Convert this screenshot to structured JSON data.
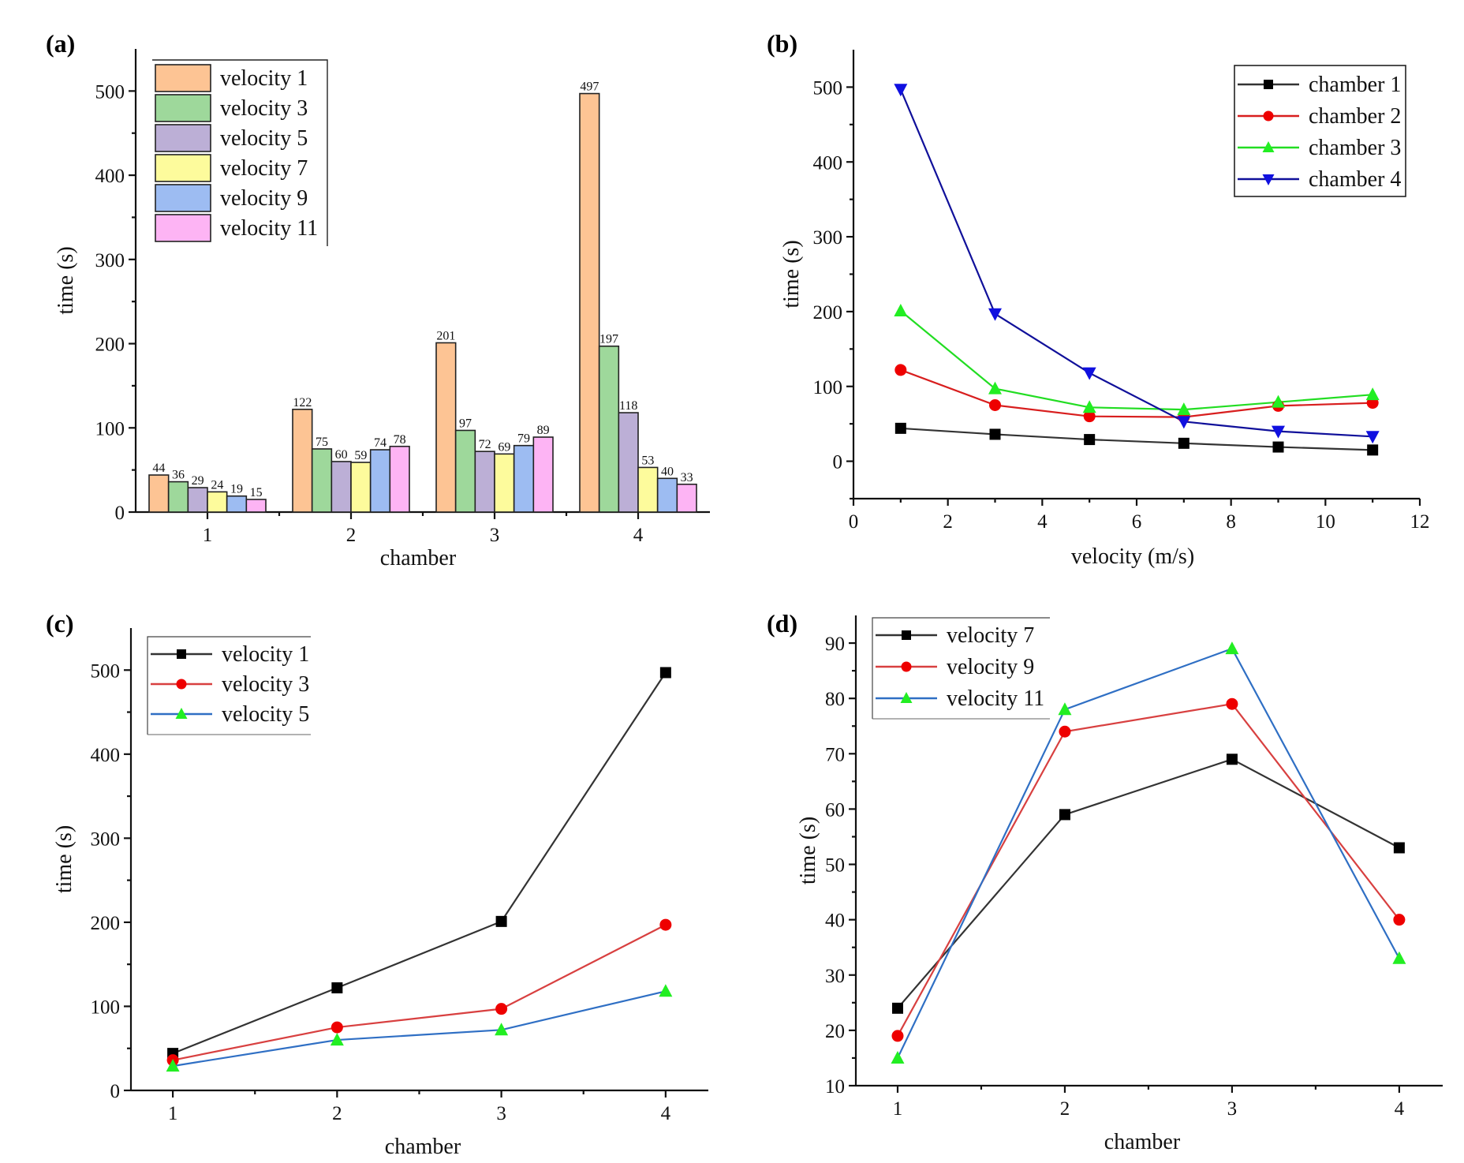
{
  "chart_data": [
    {
      "id": "a",
      "panel_label": "(a)",
      "type": "bar",
      "title": "",
      "xlabel": "chamber",
      "ylabel": "time (s)",
      "categories": [
        "1",
        "2",
        "3",
        "4"
      ],
      "xlim": [
        0.5,
        4.5
      ],
      "ylim": [
        0,
        550
      ],
      "yticks": [
        0,
        100,
        200,
        300,
        400,
        500
      ],
      "grid": false,
      "legend_position": "top-left",
      "data_labels": true,
      "series": [
        {
          "name": "velocity 1",
          "color": "#fdc494",
          "values": [
            44,
            122,
            201,
            497
          ]
        },
        {
          "name": "velocity 3",
          "color": "#9ed89b",
          "values": [
            36,
            75,
            97,
            197
          ]
        },
        {
          "name": "velocity 5",
          "color": "#bcafd6",
          "values": [
            29,
            60,
            72,
            118
          ]
        },
        {
          "name": "velocity 7",
          "color": "#fdfb9c",
          "values": [
            24,
            59,
            69,
            53
          ]
        },
        {
          "name": "velocity 9",
          "color": "#9dbcf2",
          "values": [
            19,
            74,
            79,
            40
          ]
        },
        {
          "name": "velocity 11",
          "color": "#fdb4f4",
          "values": [
            15,
            78,
            89,
            33
          ]
        }
      ]
    },
    {
      "id": "b",
      "panel_label": "(b)",
      "type": "line",
      "title": "",
      "xlabel": "velocity (m/s)",
      "ylabel": "time (s)",
      "x": [
        1,
        3,
        5,
        7,
        9,
        11
      ],
      "xlim": [
        0,
        12
      ],
      "ylim": [
        -50,
        550
      ],
      "xticks": [
        0,
        2,
        4,
        6,
        8,
        10,
        12
      ],
      "yticks": [
        0,
        100,
        200,
        300,
        400,
        500
      ],
      "grid": false,
      "legend_position": "top-right",
      "series": [
        {
          "name": "chamber 1",
          "color": "#333333",
          "marker": "square",
          "marker_color": "#000000",
          "values": [
            44,
            36,
            29,
            24,
            19,
            15
          ]
        },
        {
          "name": "chamber 2",
          "color": "#d81e1e",
          "marker": "circle",
          "marker_color": "#ee0000",
          "values": [
            122,
            75,
            60,
            59,
            74,
            78
          ]
        },
        {
          "name": "chamber 3",
          "color": "#22dd22",
          "marker": "triangle-up",
          "marker_color": "#22ee22",
          "values": [
            201,
            97,
            72,
            69,
            79,
            89
          ]
        },
        {
          "name": "chamber 4",
          "color": "#10109a",
          "marker": "triangle-down",
          "marker_color": "#1010e0",
          "values": [
            497,
            197,
            118,
            53,
            40,
            33
          ]
        }
      ]
    },
    {
      "id": "c",
      "panel_label": "(c)",
      "type": "line",
      "title": "",
      "xlabel": "chamber",
      "ylabel": "time (s)",
      "x": [
        1,
        2,
        3,
        4
      ],
      "xlim": [
        0.745,
        4.26
      ],
      "ylim": [
        0,
        550
      ],
      "xticks": [
        1,
        2,
        3,
        4
      ],
      "yticks": [
        0,
        100,
        200,
        300,
        400,
        500
      ],
      "grid": false,
      "legend_position": "top-left",
      "series": [
        {
          "name": "velocity 1",
          "color": "#333333",
          "marker": "square",
          "marker_color": "#000000",
          "values": [
            44,
            122,
            201,
            497
          ]
        },
        {
          "name": "velocity 3",
          "color": "#d84040",
          "marker": "circle",
          "marker_color": "#ee0000",
          "values": [
            36,
            75,
            97,
            197
          ]
        },
        {
          "name": "velocity 5",
          "color": "#2f6fc4",
          "marker": "triangle-up",
          "marker_color": "#22ee22",
          "values": [
            29,
            60,
            72,
            118
          ]
        }
      ]
    },
    {
      "id": "d",
      "panel_label": "(d)",
      "type": "line",
      "title": "",
      "xlabel": "chamber",
      "ylabel": "time (s)",
      "x": [
        1,
        2,
        3,
        4
      ],
      "xlim": [
        0.75,
        4.26
      ],
      "ylim": [
        10,
        95
      ],
      "xticks": [
        1,
        2,
        3,
        4
      ],
      "yticks": [
        10,
        20,
        30,
        40,
        50,
        60,
        70,
        80,
        90
      ],
      "grid": false,
      "legend_position": "top-left",
      "series": [
        {
          "name": "velocity 7",
          "color": "#333333",
          "marker": "square",
          "marker_color": "#000000",
          "values": [
            24,
            59,
            69,
            53
          ]
        },
        {
          "name": "velocity 9",
          "color": "#d84040",
          "marker": "circle",
          "marker_color": "#ee0000",
          "values": [
            19,
            74,
            79,
            40
          ]
        },
        {
          "name": "velocity 11",
          "color": "#2f6fc4",
          "marker": "triangle-up",
          "marker_color": "#22ee22",
          "values": [
            15,
            78,
            89,
            33
          ]
        }
      ]
    }
  ]
}
